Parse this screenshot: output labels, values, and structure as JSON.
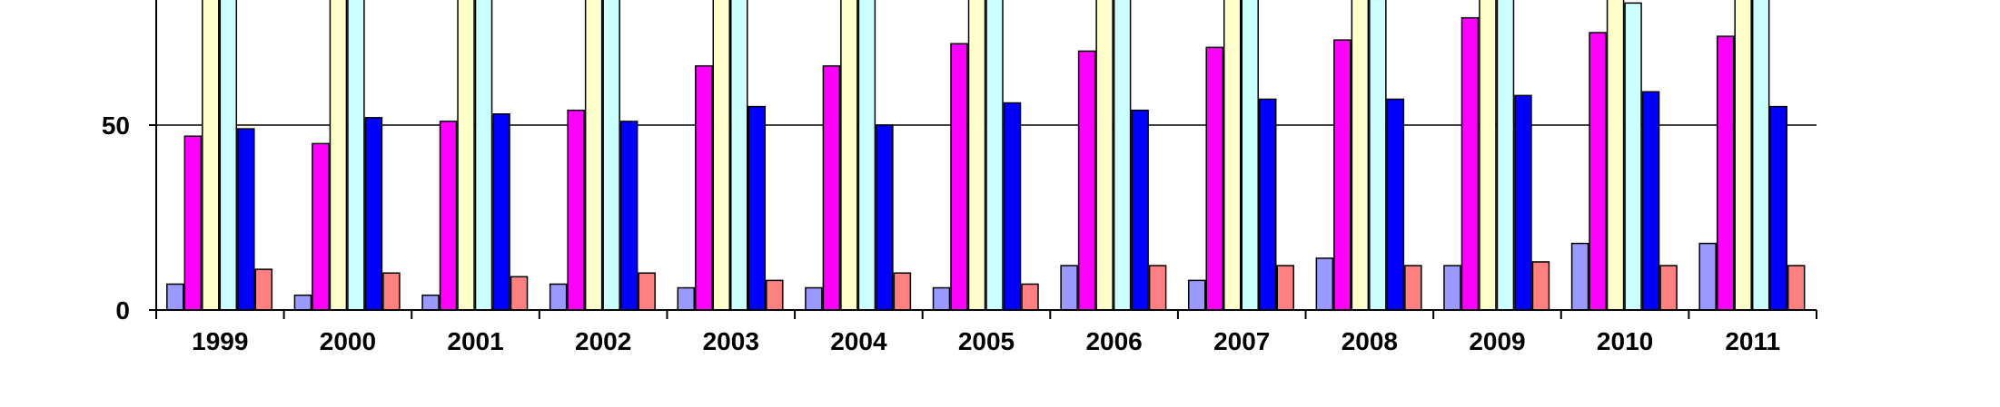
{
  "chart_data": {
    "type": "bar",
    "title": "",
    "xlabel": "",
    "ylabel": "",
    "categories": [
      "1999",
      "2000",
      "2001",
      "2002",
      "2003",
      "2004",
      "2005",
      "2006",
      "2007",
      "2008",
      "2009",
      "2010",
      "2011"
    ],
    "yticks": [
      "0",
      "50"
    ],
    "ylim": [
      0,
      85
    ],
    "grid": true,
    "series": [
      {
        "color": "#9999ff",
        "values": [
          7,
          4,
          4,
          7,
          6,
          6,
          6,
          12,
          8,
          14,
          12,
          18,
          18
        ]
      },
      {
        "color": "#ff00ff",
        "values": [
          47,
          45,
          51,
          54,
          66,
          66,
          72,
          70,
          71,
          73,
          79,
          75,
          74
        ]
      },
      {
        "color": "#ffffcc",
        "values": [
          85,
          85,
          85,
          85,
          85,
          85,
          85,
          85,
          85,
          85,
          85,
          85,
          85
        ]
      },
      {
        "color": "#ccffff",
        "values": [
          85,
          85,
          85,
          85,
          85,
          85,
          85,
          85,
          85,
          84,
          85,
          83,
          85
        ]
      },
      {
        "color": "#0000ff",
        "values": [
          49,
          52,
          53,
          51,
          55,
          50,
          56,
          54,
          57,
          57,
          58,
          59,
          55
        ]
      },
      {
        "color": "#ff8080",
        "values": [
          11,
          10,
          9,
          10,
          8,
          10,
          7,
          12,
          12,
          12,
          13,
          12,
          12
        ]
      }
    ]
  }
}
